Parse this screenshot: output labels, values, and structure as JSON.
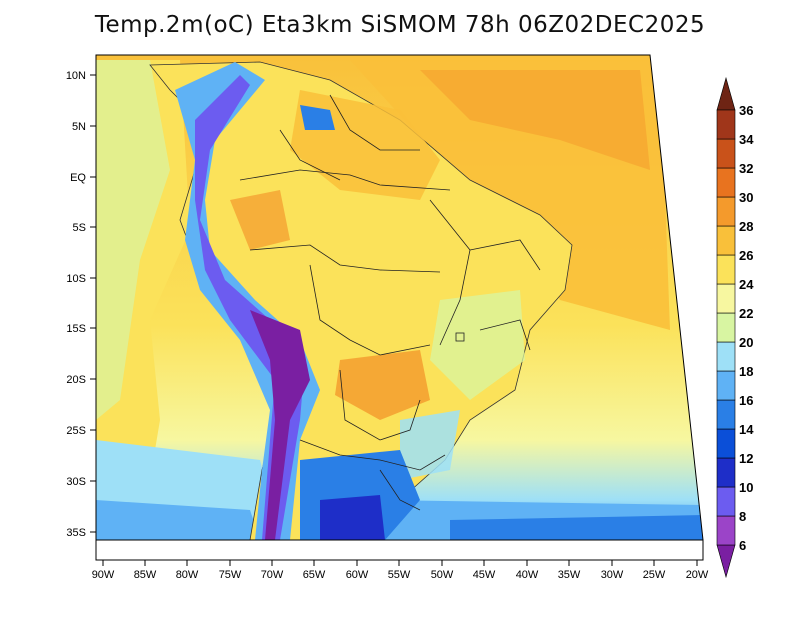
{
  "title": "Temp.2m(oC) Eta3km SiSMOM 78h 06Z02DEC2025",
  "map": {
    "lat_labels": [
      "10N",
      "5N",
      "EQ",
      "5S",
      "10S",
      "15S",
      "20S",
      "25S",
      "30S",
      "35S"
    ],
    "lon_labels": [
      "90W",
      "85W",
      "80W",
      "75W",
      "70W",
      "65W",
      "60W",
      "55W",
      "50W",
      "45W",
      "40W",
      "35W",
      "30W",
      "25W",
      "20W"
    ]
  },
  "colorbar": {
    "levels": [
      "6",
      "8",
      "10",
      "12",
      "14",
      "16",
      "18",
      "20",
      "22",
      "24",
      "26",
      "28",
      "30",
      "32",
      "34",
      "36"
    ],
    "colors": [
      "#7a1fa2",
      "#9b44c8",
      "#6c5cf0",
      "#1e2ec8",
      "#0b4fd8",
      "#2a7fe6",
      "#5fb2f5",
      "#9ee0f7",
      "#d8f5a2",
      "#f7f7a0",
      "#fbe25a",
      "#f9c03a",
      "#f49a2c",
      "#e8731f",
      "#c9521a",
      "#a0361a",
      "#6e2414"
    ]
  }
}
